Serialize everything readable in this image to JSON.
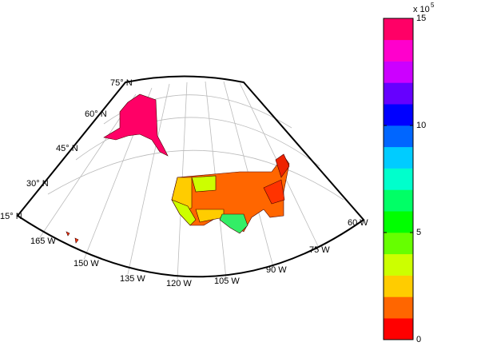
{
  "map": {
    "lat_labels": [
      "75° N",
      "60° N",
      "45° N",
      "30° N",
      "15° N"
    ],
    "lon_labels": [
      "165 W",
      "150 W",
      "135 W",
      "120 W",
      "105 W",
      "90 W",
      "75 W",
      "60 W"
    ],
    "colorbar": {
      "range": [
        0,
        15
      ],
      "ticks": [
        0,
        5,
        10,
        15
      ],
      "exponent_label": "x 10",
      "exponent": "5",
      "colors": [
        "#ff0000",
        "#ff6600",
        "#ffcc00",
        "#ccff00",
        "#66ff00",
        "#00ff00",
        "#00ff66",
        "#00ffcc",
        "#00ccff",
        "#0066ff",
        "#0000ff",
        "#6600ff",
        "#cc00ff",
        "#ff00cc",
        "#ff0066"
      ]
    }
  }
}
